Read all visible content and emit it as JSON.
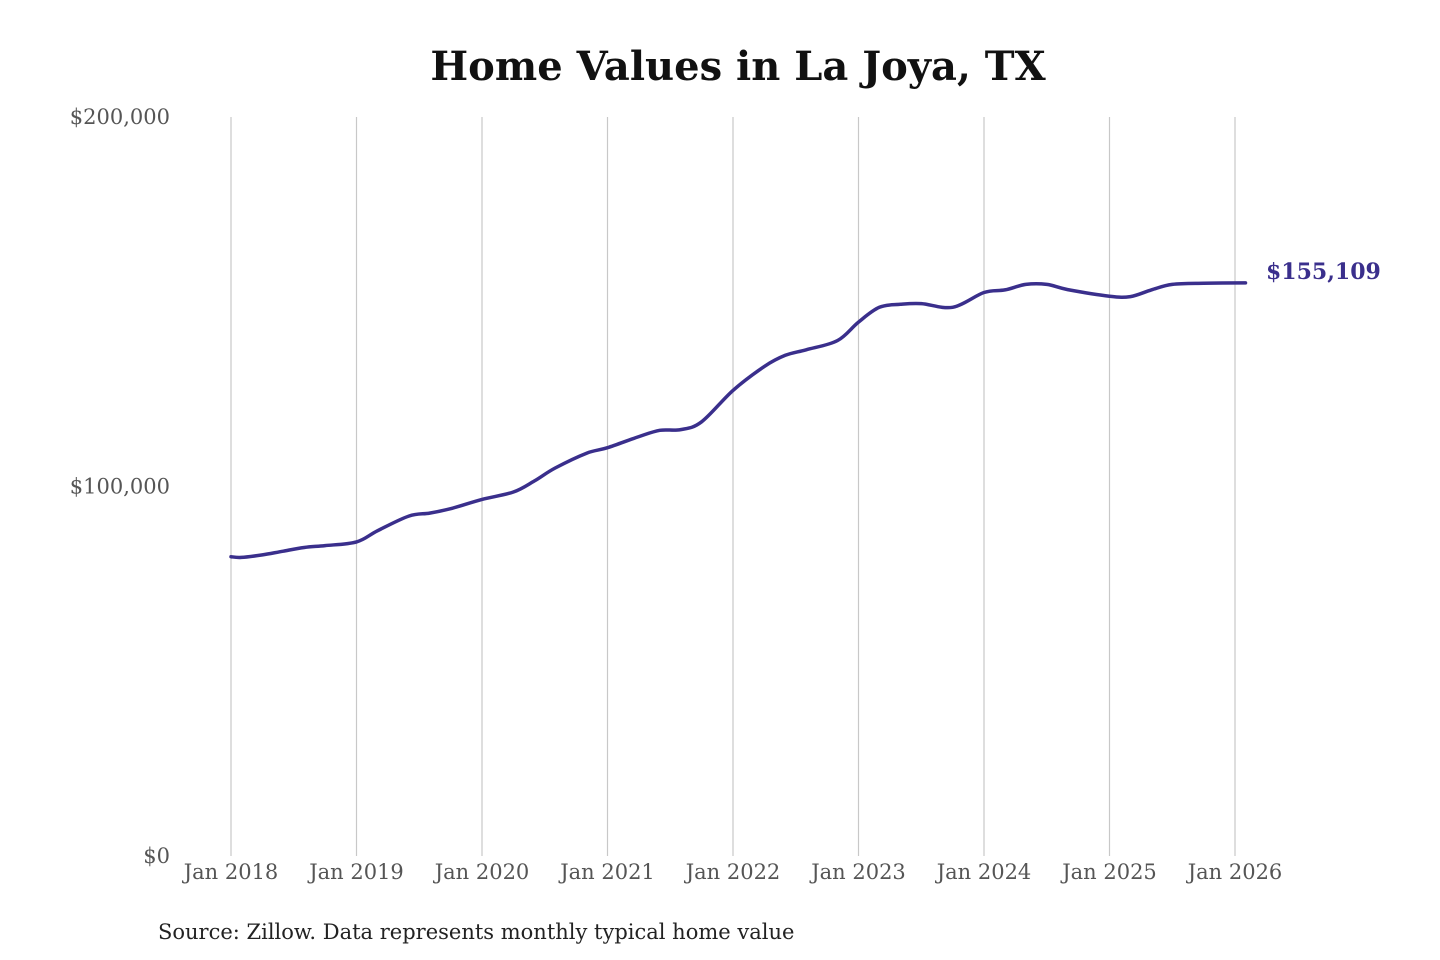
{
  "chart_data": {
    "type": "line",
    "title": "Home Values in La Joya, TX",
    "xlabel": "",
    "ylabel": "",
    "x_ticks": [
      "Jan 2018",
      "Jan 2019",
      "Jan 2020",
      "Jan 2021",
      "Jan 2022",
      "Jan 2023",
      "Jan 2024",
      "Jan 2025",
      "Jan 2026"
    ],
    "x_tick_dates": [
      2018.0,
      2019.0,
      2020.0,
      2021.0,
      2022.0,
      2023.0,
      2024.0,
      2025.0,
      2026.0
    ],
    "y_ticks": [
      "$0",
      "$100,000",
      "$200,000"
    ],
    "y_tick_values": [
      0,
      100000,
      200000
    ],
    "ylim": [
      0,
      200000
    ],
    "xlim": [
      2018.0,
      2026.083
    ],
    "grid": "vertical",
    "line_color": "#3a2f8c",
    "series": [
      {
        "x": [
          "2018-01",
          "2018-02",
          "2018-04",
          "2018-06",
          "2018-08",
          "2018-10",
          "2019-01",
          "2019-03",
          "2019-06",
          "2019-08",
          "2019-10",
          "2020-01",
          "2020-04",
          "2020-06",
          "2020-08",
          "2020-11",
          "2021-01",
          "2021-04",
          "2021-06",
          "2021-08",
          "2021-10",
          "2022-01",
          "2022-04",
          "2022-06",
          "2022-08",
          "2022-11",
          "2023-01",
          "2023-03",
          "2023-05",
          "2023-07",
          "2023-10",
          "2024-01",
          "2024-03",
          "2024-05",
          "2024-07",
          "2024-09",
          "2025-01",
          "2025-03",
          "2025-05",
          "2025-07",
          "2025-10",
          "2026-02"
        ],
        "values": [
          81000,
          80800,
          81500,
          82500,
          83500,
          84000,
          85000,
          88000,
          92000,
          92800,
          94000,
          96500,
          98500,
          101500,
          105000,
          109000,
          110500,
          113500,
          115200,
          115400,
          117500,
          126000,
          132500,
          135500,
          137000,
          139500,
          144500,
          148500,
          149300,
          149500,
          148500,
          152500,
          153200,
          154700,
          154700,
          153300,
          151500,
          151400,
          153200,
          154700,
          155000,
          155109
        ]
      }
    ],
    "end_label": "$155,109",
    "source_note": "Source: Zillow. Data represents monthly typical home value"
  }
}
